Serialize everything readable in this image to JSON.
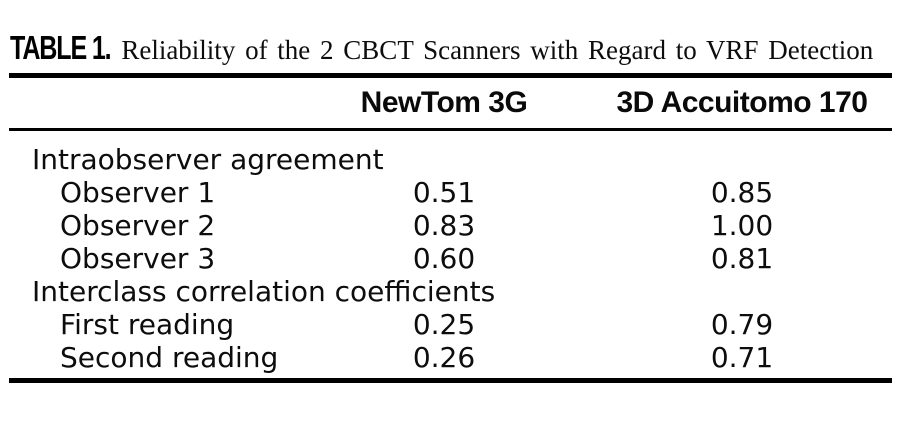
{
  "table": {
    "label": "TABLE 1.",
    "title": "Reliability of the 2 CBCT Scanners with Regard to VRF Detection",
    "columns": [
      "",
      "NewTom 3G",
      "3D Accuitomo 170"
    ],
    "sections": [
      {
        "header": "Intraobserver agreement",
        "rows": [
          {
            "label": "Observer 1",
            "values": [
              "0.51",
              "0.85"
            ]
          },
          {
            "label": "Observer 2",
            "values": [
              "0.83",
              "1.00"
            ]
          },
          {
            "label": "Observer 3",
            "values": [
              "0.60",
              "0.81"
            ]
          }
        ]
      },
      {
        "header": "Interclass correlation coefficients",
        "rows": [
          {
            "label": "First reading",
            "values": [
              "0.25",
              "0.79"
            ]
          },
          {
            "label": "Second reading",
            "values": [
              "0.26",
              "0.71"
            ]
          }
        ]
      }
    ]
  },
  "colors": {
    "text": "#0d0d0d",
    "rule": "#000000",
    "background": "#ffffff"
  },
  "chart_data": {
    "type": "table",
    "title": "TABLE 1. Reliability of the 2 CBCT Scanners with Regard to VRF Detection",
    "columns": [
      "",
      "NewTom 3G",
      "3D Accuitomo 170"
    ],
    "rows": [
      [
        "Intraobserver agreement",
        null,
        null
      ],
      [
        "Observer 1",
        0.51,
        0.85
      ],
      [
        "Observer 2",
        0.83,
        1.0
      ],
      [
        "Observer 3",
        0.6,
        0.81
      ],
      [
        "Interclass correlation coefficients",
        null,
        null
      ],
      [
        "First reading",
        0.25,
        0.79
      ],
      [
        "Second reading",
        0.26,
        0.71
      ]
    ]
  }
}
